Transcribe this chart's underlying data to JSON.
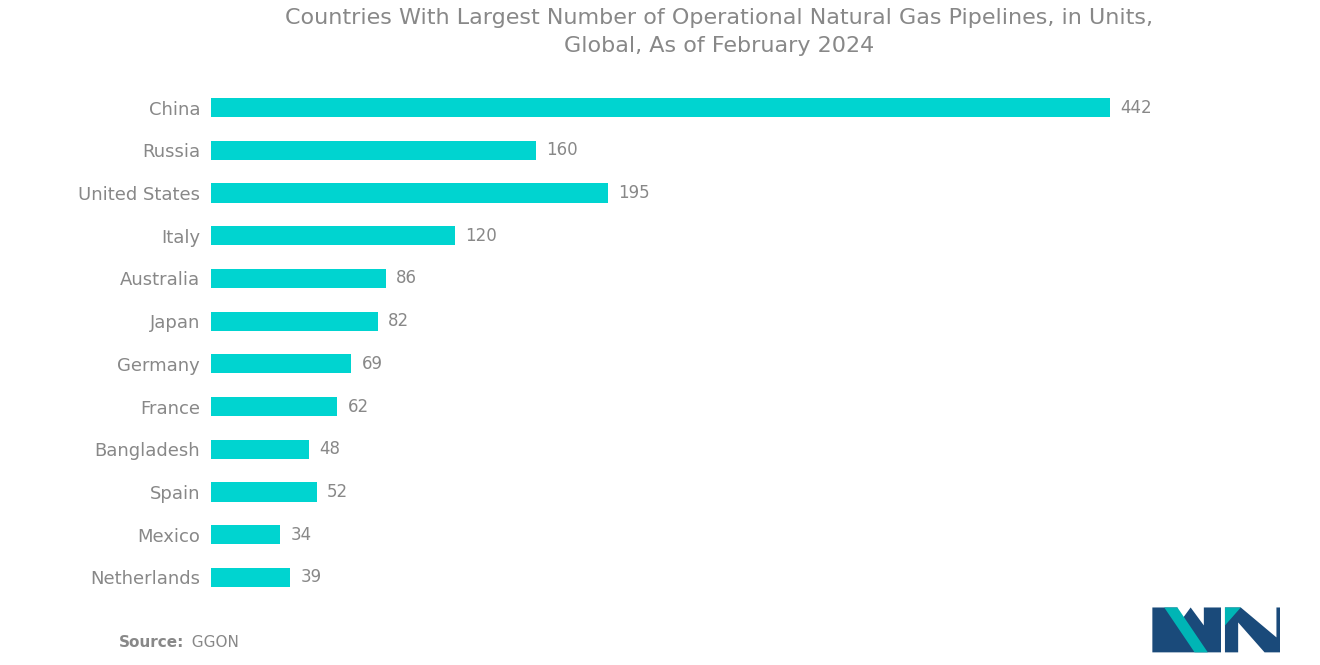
{
  "title": "Countries With Largest Number of Operational Natural Gas Pipelines, in Units,\nGlobal, As of February 2024",
  "title_fontsize": 16,
  "title_color": "#888888",
  "categories": [
    "China",
    "Russia",
    "United States",
    "Italy",
    "Australia",
    "Japan",
    "Germany",
    "France",
    "Bangladesh",
    "Spain",
    "Mexico",
    "Netherlands"
  ],
  "values": [
    442,
    160,
    195,
    120,
    86,
    82,
    69,
    62,
    48,
    52,
    34,
    39
  ],
  "bar_color": "#00D4D0",
  "label_color": "#888888",
  "label_fontsize": 12,
  "ytick_fontsize": 13,
  "background_color": "#ffffff",
  "source_bold": "Source:",
  "source_normal": "  GGON",
  "source_fontsize": 11,
  "xlim": [
    0,
    500
  ],
  "bar_height": 0.45
}
